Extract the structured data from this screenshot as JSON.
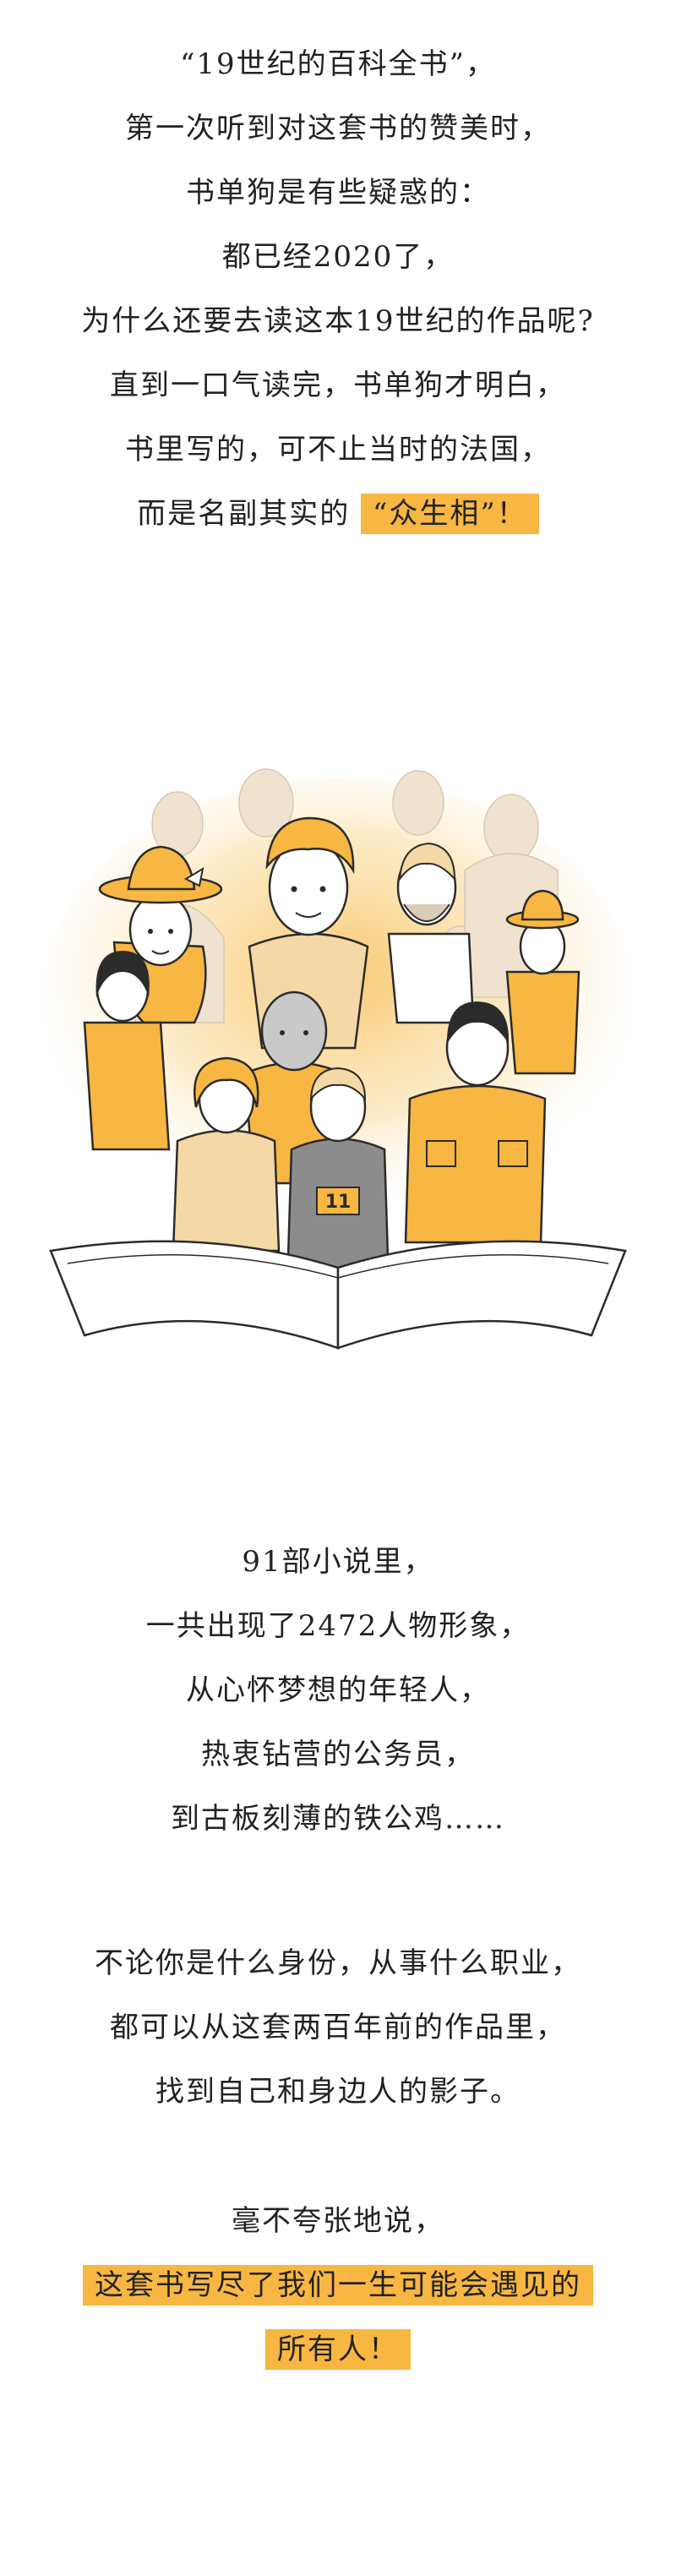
{
  "intro": {
    "lines": [
      "“19世纪的百科全书”，",
      "第一次听到对这套书的赞美时，",
      "书单狗是有些疑惑的：",
      "都已经2020了，",
      "为什么还要去读这本19世纪的作品呢?",
      "直到一口气读完，书单狗才明白，",
      "书里写的，可不止当时的法国，"
    ],
    "last_prefix": "而是名副其实的",
    "last_highlight": "“众生相”！"
  },
  "illustration": {
    "jersey_number": "11"
  },
  "people": {
    "lines": [
      "91部小说里，",
      "一共出现了2472人物形象，",
      "从心怀梦想的年轻人，",
      "热衷钻营的公务员，",
      "到古板刻薄的铁公鸡……"
    ]
  },
  "identity": {
    "lines": [
      "不论你是什么身份，从事什么职业，",
      "都可以从这套两百年前的作品里，",
      "找到自己和身边人的影子。"
    ]
  },
  "closing": {
    "line1": "毫不夸张地说，",
    "highlight1": "这套书写尽了我们一生可能会遇见的",
    "highlight2": "所有人！"
  },
  "colors": {
    "accent": "#f7b742",
    "text": "#222222"
  }
}
